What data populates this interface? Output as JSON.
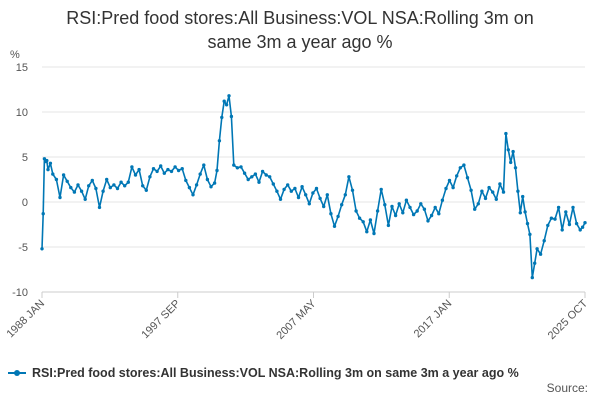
{
  "chart_data": {
    "type": "line",
    "title_lines": [
      "RSI:Pred food stores:All Business:VOL NSA:Rolling 3m on",
      "same 3m a year ago %"
    ],
    "y_unit_label": "%",
    "ylim": [
      -10,
      15
    ],
    "y_ticks": [
      15,
      10,
      5,
      0,
      -5,
      -10
    ],
    "x_tick_labels": [
      "1988 JAN",
      "1997 SEP",
      "2007 MAY",
      "2017 JAN",
      "2025 OCT"
    ],
    "x_range": [
      "1988-01",
      "2025-10"
    ],
    "grid": "horizontal",
    "legend_position": "bottom",
    "source_label": "Source:",
    "color": "#0077b5",
    "series": [
      {
        "name": "RSI:Pred food stores:All Business:VOL NSA:Rolling 3m on same 3m a year ago %",
        "points": [
          [
            "1988-01",
            -5.2
          ],
          [
            "1988-02",
            -1.3
          ],
          [
            "1988-03",
            4.8
          ],
          [
            "1988-04",
            4.5
          ],
          [
            "1988-05",
            4.6
          ],
          [
            "1988-06",
            3.6
          ],
          [
            "1988-08",
            4.3
          ],
          [
            "1988-10",
            3.1
          ],
          [
            "1989-01",
            2.5
          ],
          [
            "1989-04",
            0.5
          ],
          [
            "1989-07",
            3.0
          ],
          [
            "1989-10",
            2.3
          ],
          [
            "1990-01",
            1.6
          ],
          [
            "1990-04",
            1.1
          ],
          [
            "1990-07",
            1.9
          ],
          [
            "1990-10",
            1.2
          ],
          [
            "1991-01",
            0.3
          ],
          [
            "1991-04",
            1.8
          ],
          [
            "1991-07",
            2.4
          ],
          [
            "1991-10",
            1.5
          ],
          [
            "1992-01",
            -0.6
          ],
          [
            "1992-04",
            1.2
          ],
          [
            "1992-07",
            2.5
          ],
          [
            "1992-10",
            1.6
          ],
          [
            "1993-01",
            1.9
          ],
          [
            "1993-04",
            1.5
          ],
          [
            "1993-07",
            2.2
          ],
          [
            "1993-10",
            1.8
          ],
          [
            "1994-01",
            2.2
          ],
          [
            "1994-04",
            3.9
          ],
          [
            "1994-07",
            3.0
          ],
          [
            "1994-10",
            3.6
          ],
          [
            "1995-01",
            1.8
          ],
          [
            "1995-04",
            1.3
          ],
          [
            "1995-07",
            2.8
          ],
          [
            "1995-10",
            3.7
          ],
          [
            "1996-01",
            3.4
          ],
          [
            "1996-04",
            4.0
          ],
          [
            "1996-07",
            3.2
          ],
          [
            "1996-10",
            3.6
          ],
          [
            "1997-01",
            3.4
          ],
          [
            "1997-04",
            3.9
          ],
          [
            "1997-07",
            3.5
          ],
          [
            "1997-10",
            3.7
          ],
          [
            "1998-01",
            2.4
          ],
          [
            "1998-04",
            1.6
          ],
          [
            "1998-07",
            0.8
          ],
          [
            "1998-10",
            1.9
          ],
          [
            "1999-01",
            3.1
          ],
          [
            "1999-04",
            4.1
          ],
          [
            "1999-07",
            2.5
          ],
          [
            "1999-10",
            1.7
          ],
          [
            "2000-01",
            2.1
          ],
          [
            "2000-03",
            3.5
          ],
          [
            "2000-05",
            6.8
          ],
          [
            "2000-07",
            9.4
          ],
          [
            "2000-09",
            11.2
          ],
          [
            "2000-11",
            10.8
          ],
          [
            "2001-01",
            11.8
          ],
          [
            "2001-03",
            9.5
          ],
          [
            "2001-05",
            4.1
          ],
          [
            "2001-08",
            3.8
          ],
          [
            "2001-11",
            3.9
          ],
          [
            "2002-02",
            3.2
          ],
          [
            "2002-05",
            2.5
          ],
          [
            "2002-08",
            2.8
          ],
          [
            "2002-11",
            3.1
          ],
          [
            "2003-02",
            2.2
          ],
          [
            "2003-05",
            3.4
          ],
          [
            "2003-08",
            3.0
          ],
          [
            "2003-11",
            2.8
          ],
          [
            "2004-02",
            2.0
          ],
          [
            "2004-05",
            1.2
          ],
          [
            "2004-08",
            0.3
          ],
          [
            "2004-11",
            1.4
          ],
          [
            "2005-02",
            1.9
          ],
          [
            "2005-05",
            1.2
          ],
          [
            "2005-08",
            1.5
          ],
          [
            "2005-11",
            0.5
          ],
          [
            "2006-02",
            1.7
          ],
          [
            "2006-05",
            0.8
          ],
          [
            "2006-08",
            -0.2
          ],
          [
            "2006-11",
            1.0
          ],
          [
            "2007-02",
            1.5
          ],
          [
            "2007-05",
            0.4
          ],
          [
            "2007-08",
            -0.5
          ],
          [
            "2007-11",
            0.8
          ],
          [
            "2008-02",
            -1.3
          ],
          [
            "2008-05",
            -2.7
          ],
          [
            "2008-08",
            -1.6
          ],
          [
            "2008-11",
            -0.3
          ],
          [
            "2009-02",
            0.8
          ],
          [
            "2009-05",
            2.8
          ],
          [
            "2009-08",
            1.3
          ],
          [
            "2009-11",
            -1.0
          ],
          [
            "2010-02",
            -1.8
          ],
          [
            "2010-05",
            -2.2
          ],
          [
            "2010-08",
            -3.3
          ],
          [
            "2010-11",
            -2.0
          ],
          [
            "2011-02",
            -3.5
          ],
          [
            "2011-05",
            -1.0
          ],
          [
            "2011-08",
            1.4
          ],
          [
            "2011-11",
            -0.3
          ],
          [
            "2012-02",
            -2.6
          ],
          [
            "2012-05",
            -0.5
          ],
          [
            "2012-08",
            -1.5
          ],
          [
            "2012-11",
            -0.2
          ],
          [
            "2013-02",
            -1.2
          ],
          [
            "2013-05",
            0.2
          ],
          [
            "2013-08",
            -0.6
          ],
          [
            "2013-11",
            -1.4
          ],
          [
            "2014-02",
            -1.0
          ],
          [
            "2014-05",
            -0.2
          ],
          [
            "2014-08",
            -0.8
          ],
          [
            "2014-11",
            -2.1
          ],
          [
            "2015-02",
            -1.5
          ],
          [
            "2015-05",
            -0.6
          ],
          [
            "2015-08",
            -1.3
          ],
          [
            "2015-11",
            0.2
          ],
          [
            "2016-02",
            1.5
          ],
          [
            "2016-05",
            2.4
          ],
          [
            "2016-08",
            1.6
          ],
          [
            "2016-11",
            2.9
          ],
          [
            "2017-02",
            3.8
          ],
          [
            "2017-05",
            4.1
          ],
          [
            "2017-08",
            2.7
          ],
          [
            "2017-11",
            1.3
          ],
          [
            "2018-02",
            -0.8
          ],
          [
            "2018-05",
            -0.2
          ],
          [
            "2018-08",
            1.2
          ],
          [
            "2018-11",
            0.4
          ],
          [
            "2019-02",
            1.6
          ],
          [
            "2019-05",
            1.1
          ],
          [
            "2019-08",
            0.3
          ],
          [
            "2019-11",
            2.0
          ],
          [
            "2020-02",
            1.1
          ],
          [
            "2020-04",
            7.6
          ],
          [
            "2020-06",
            5.8
          ],
          [
            "2020-08",
            4.4
          ],
          [
            "2020-10",
            5.6
          ],
          [
            "2020-12",
            3.8
          ],
          [
            "2021-02",
            1.2
          ],
          [
            "2021-04",
            -1.2
          ],
          [
            "2021-06",
            0.6
          ],
          [
            "2021-08",
            -1.1
          ],
          [
            "2021-10",
            -2.4
          ],
          [
            "2021-12",
            -3.6
          ],
          [
            "2022-02",
            -8.4
          ],
          [
            "2022-04",
            -6.8
          ],
          [
            "2022-06",
            -5.2
          ],
          [
            "2022-09",
            -5.8
          ],
          [
            "2022-12",
            -4.3
          ],
          [
            "2023-03",
            -2.6
          ],
          [
            "2023-06",
            -1.8
          ],
          [
            "2023-09",
            -1.9
          ],
          [
            "2023-12",
            -0.6
          ],
          [
            "2024-03",
            -3.1
          ],
          [
            "2024-06",
            -1.1
          ],
          [
            "2024-09",
            -2.5
          ],
          [
            "2024-12",
            -0.6
          ],
          [
            "2025-03",
            -2.4
          ],
          [
            "2025-06",
            -3.1
          ],
          [
            "2025-08",
            -2.8
          ],
          [
            "2025-10",
            -2.3
          ]
        ]
      }
    ]
  }
}
